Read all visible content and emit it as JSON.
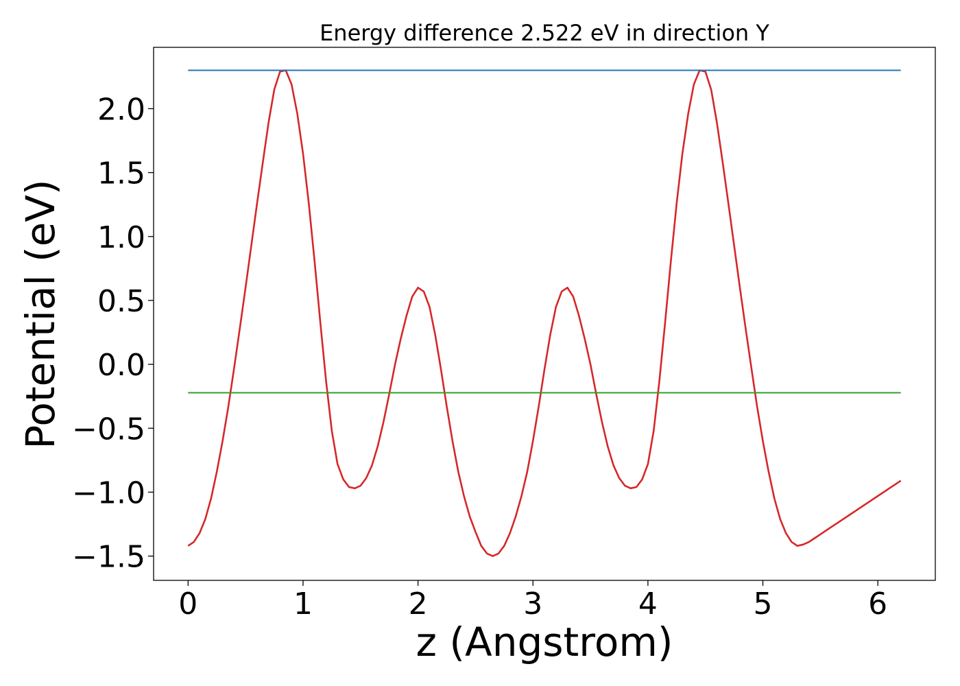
{
  "chart_data": {
    "type": "line",
    "title": "Energy difference 2.522 eV in direction Y",
    "xlabel": "z (Angstrom)",
    "ylabel": "Potential (eV)",
    "xlim": [
      -0.3,
      6.5
    ],
    "ylim": [
      -1.69,
      2.48
    ],
    "xticks": [
      0,
      1,
      2,
      3,
      4,
      5,
      6
    ],
    "yticks": [
      2.0,
      1.5,
      1.0,
      0.5,
      0.0,
      -0.5,
      -1.0,
      -1.5
    ],
    "xtick_labels": [
      "0",
      "1",
      "2",
      "3",
      "4",
      "5",
      "6"
    ],
    "ytick_labels": [
      "2.0",
      "1.5",
      "1.0",
      "0.5",
      "0.0",
      "−0.5",
      "−1.0",
      "−1.5"
    ],
    "grid": false,
    "series": [
      {
        "color": "#d62728",
        "x": [
          0.0,
          0.05,
          0.1,
          0.15,
          0.2,
          0.25,
          0.3,
          0.35,
          0.4,
          0.45,
          0.5,
          0.55,
          0.6,
          0.65,
          0.7,
          0.75,
          0.8,
          0.85,
          0.9,
          0.95,
          1.0,
          1.05,
          1.1,
          1.15,
          1.2,
          1.25,
          1.3,
          1.35,
          1.4,
          1.45,
          1.5,
          1.55,
          1.6,
          1.65,
          1.7,
          1.75,
          1.8,
          1.85,
          1.9,
          1.95,
          2.0,
          2.05,
          2.1,
          2.15,
          2.2,
          2.25,
          2.3,
          2.35,
          2.4,
          2.45,
          2.5,
          2.55,
          2.6,
          2.65,
          2.7,
          2.75,
          2.8,
          2.85,
          2.9,
          2.95,
          3.0,
          3.05,
          3.1,
          3.15,
          3.2,
          3.25,
          3.3,
          3.35,
          3.4,
          3.45,
          3.5,
          3.55,
          3.6,
          3.65,
          3.7,
          3.75,
          3.8,
          3.85,
          3.9,
          3.95,
          4.0,
          4.05,
          4.1,
          4.15,
          4.2,
          4.25,
          4.3,
          4.35,
          4.4,
          4.45,
          4.5,
          4.55,
          4.6,
          4.65,
          4.7,
          4.75,
          4.8,
          4.85,
          4.9,
          4.95,
          5.0,
          5.05,
          5.1,
          5.15,
          5.2,
          5.25,
          5.3,
          5.35,
          5.4,
          5.45,
          5.5,
          5.55,
          5.6,
          5.65,
          5.7,
          5.75,
          5.8,
          5.85,
          5.9,
          5.95,
          6.0,
          6.05,
          6.1,
          6.15,
          6.2
        ],
        "y": [
          -1.42,
          -1.39,
          -1.32,
          -1.21,
          -1.05,
          -0.84,
          -0.6,
          -0.33,
          -0.03,
          0.28,
          0.6,
          0.93,
          1.26,
          1.58,
          1.89,
          2.15,
          2.29,
          2.3,
          2.19,
          1.96,
          1.65,
          1.26,
          0.81,
          0.33,
          -0.13,
          -0.52,
          -0.78,
          -0.9,
          -0.96,
          -0.97,
          -0.95,
          -0.89,
          -0.79,
          -0.64,
          -0.45,
          -0.23,
          0.0,
          0.2,
          0.38,
          0.53,
          0.6,
          0.57,
          0.45,
          0.23,
          -0.04,
          -0.33,
          -0.6,
          -0.84,
          -1.03,
          -1.19,
          -1.31,
          -1.42,
          -1.48,
          -1.5,
          -1.48,
          -1.42,
          -1.32,
          -1.19,
          -1.03,
          -0.84,
          -0.6,
          -0.33,
          -0.04,
          0.23,
          0.45,
          0.57,
          0.6,
          0.53,
          0.38,
          0.2,
          0.0,
          -0.23,
          -0.45,
          -0.64,
          -0.79,
          -0.89,
          -0.95,
          -0.97,
          -0.96,
          -0.9,
          -0.78,
          -0.52,
          -0.13,
          0.33,
          0.81,
          1.26,
          1.65,
          1.96,
          2.19,
          2.3,
          2.29,
          2.15,
          1.89,
          1.58,
          1.26,
          0.93,
          0.6,
          0.28,
          -0.03,
          -0.33,
          -0.6,
          -0.84,
          -1.05,
          -1.21,
          -1.32,
          -1.39,
          -1.42,
          -1.41,
          -1.39,
          -1.36,
          -1.33,
          -1.3,
          -1.27,
          -1.24,
          -1.21,
          -1.18,
          -1.15,
          -1.12,
          -1.09,
          -1.06,
          -1.03,
          -1.0,
          -0.97,
          -0.94,
          -0.91
        ]
      },
      {
        "color": "#1f77b4",
        "x": [
          0.0,
          6.2
        ],
        "y": [
          2.3,
          2.3
        ]
      },
      {
        "color": "#2ca02c",
        "x": [
          0.0,
          6.2
        ],
        "y": [
          -0.222,
          -0.222
        ]
      }
    ]
  }
}
